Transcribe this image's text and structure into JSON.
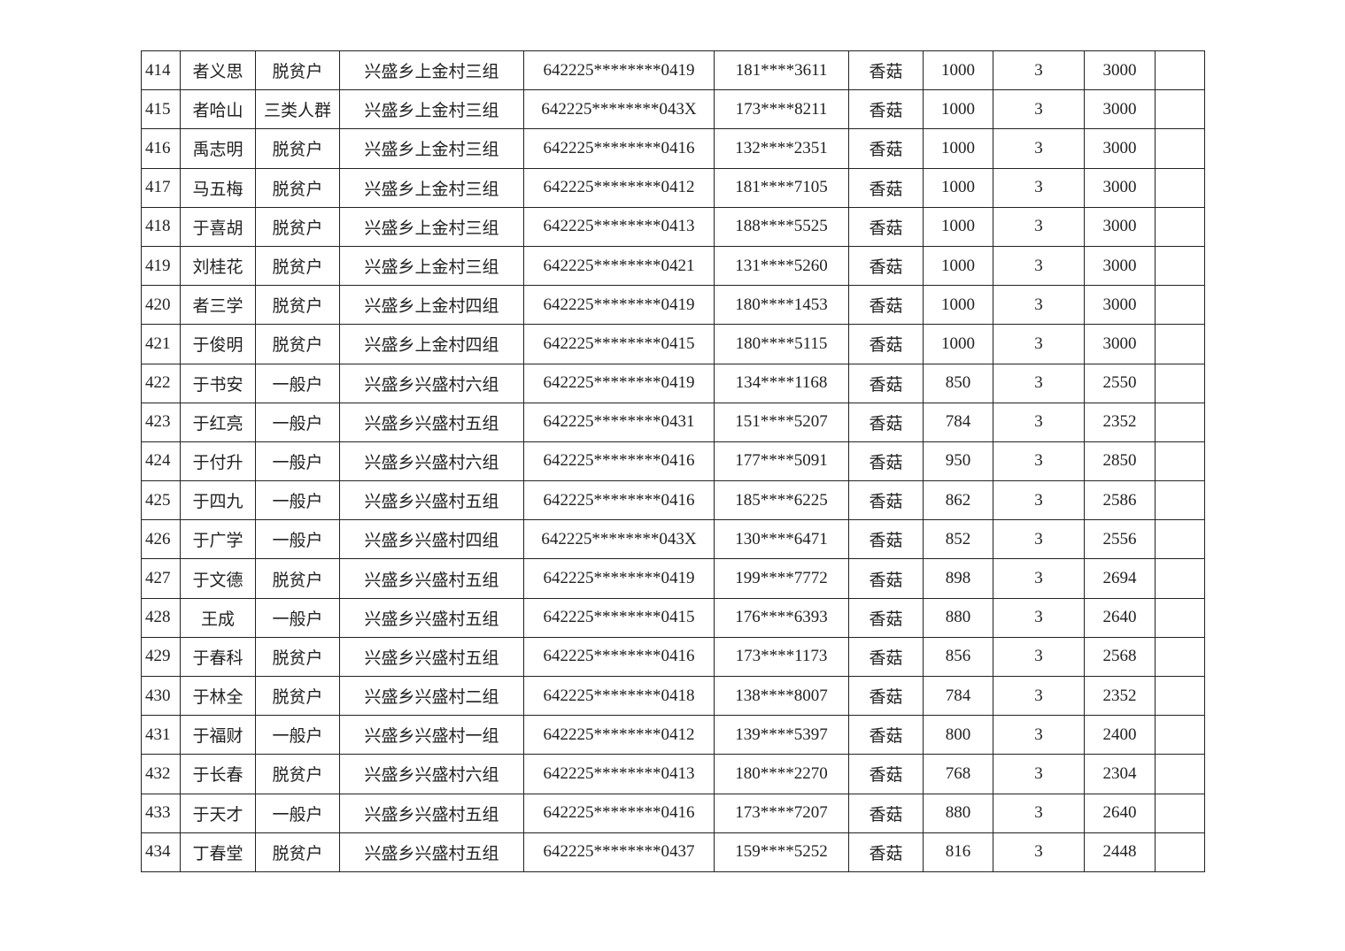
{
  "table": {
    "rows": [
      [
        "414",
        "者义思",
        "脱贫户",
        "兴盛乡上金村三组",
        "642225********0419",
        "181****3611",
        "香菇",
        "1000",
        "3",
        "3000",
        ""
      ],
      [
        "415",
        "者哈山",
        "三类人群",
        "兴盛乡上金村三组",
        "642225********043X",
        "173****8211",
        "香菇",
        "1000",
        "3",
        "3000",
        ""
      ],
      [
        "416",
        "禹志明",
        "脱贫户",
        "兴盛乡上金村三组",
        "642225********0416",
        "132****2351",
        "香菇",
        "1000",
        "3",
        "3000",
        ""
      ],
      [
        "417",
        "马五梅",
        "脱贫户",
        "兴盛乡上金村三组",
        "642225********0412",
        "181****7105",
        "香菇",
        "1000",
        "3",
        "3000",
        ""
      ],
      [
        "418",
        "于喜胡",
        "脱贫户",
        "兴盛乡上金村三组",
        "642225********0413",
        "188****5525",
        "香菇",
        "1000",
        "3",
        "3000",
        ""
      ],
      [
        "419",
        "刘桂花",
        "脱贫户",
        "兴盛乡上金村三组",
        "642225********0421",
        "131****5260",
        "香菇",
        "1000",
        "3",
        "3000",
        ""
      ],
      [
        "420",
        "者三学",
        "脱贫户",
        "兴盛乡上金村四组",
        "642225********0419",
        "180****1453",
        "香菇",
        "1000",
        "3",
        "3000",
        ""
      ],
      [
        "421",
        "于俊明",
        "脱贫户",
        "兴盛乡上金村四组",
        "642225********0415",
        "180****5115",
        "香菇",
        "1000",
        "3",
        "3000",
        ""
      ],
      [
        "422",
        "于书安",
        "一般户",
        "兴盛乡兴盛村六组",
        "642225********0419",
        "134****1168",
        "香菇",
        "850",
        "3",
        "2550",
        ""
      ],
      [
        "423",
        "于红亮",
        "一般户",
        "兴盛乡兴盛村五组",
        "642225********0431",
        "151****5207",
        "香菇",
        "784",
        "3",
        "2352",
        ""
      ],
      [
        "424",
        "于付升",
        "一般户",
        "兴盛乡兴盛村六组",
        "642225********0416",
        "177****5091",
        "香菇",
        "950",
        "3",
        "2850",
        ""
      ],
      [
        "425",
        "于四九",
        "一般户",
        "兴盛乡兴盛村五组",
        "642225********0416",
        "185****6225",
        "香菇",
        "862",
        "3",
        "2586",
        ""
      ],
      [
        "426",
        "于广学",
        "一般户",
        "兴盛乡兴盛村四组",
        "642225********043X",
        "130****6471",
        "香菇",
        "852",
        "3",
        "2556",
        ""
      ],
      [
        "427",
        "于文德",
        "脱贫户",
        "兴盛乡兴盛村五组",
        "642225********0419",
        "199****7772",
        "香菇",
        "898",
        "3",
        "2694",
        ""
      ],
      [
        "428",
        "王成",
        "一般户",
        "兴盛乡兴盛村五组",
        "642225********0415",
        "176****6393",
        "香菇",
        "880",
        "3",
        "2640",
        ""
      ],
      [
        "429",
        "于春科",
        "脱贫户",
        "兴盛乡兴盛村五组",
        "642225********0416",
        "173****1173",
        "香菇",
        "856",
        "3",
        "2568",
        ""
      ],
      [
        "430",
        "于林全",
        "脱贫户",
        "兴盛乡兴盛村二组",
        "642225********0418",
        "138****8007",
        "香菇",
        "784",
        "3",
        "2352",
        ""
      ],
      [
        "431",
        "于福财",
        "一般户",
        "兴盛乡兴盛村一组",
        "642225********0412",
        "139****5397",
        "香菇",
        "800",
        "3",
        "2400",
        ""
      ],
      [
        "432",
        "于长春",
        "脱贫户",
        "兴盛乡兴盛村六组",
        "642225********0413",
        "180****2270",
        "香菇",
        "768",
        "3",
        "2304",
        ""
      ],
      [
        "433",
        "于天才",
        "一般户",
        "兴盛乡兴盛村五组",
        "642225********0416",
        "173****7207",
        "香菇",
        "880",
        "3",
        "2640",
        ""
      ],
      [
        "434",
        "丁春堂",
        "脱贫户",
        "兴盛乡兴盛村五组",
        "642225********0437",
        "159****5252",
        "香菇",
        "816",
        "3",
        "2448",
        ""
      ]
    ]
  }
}
